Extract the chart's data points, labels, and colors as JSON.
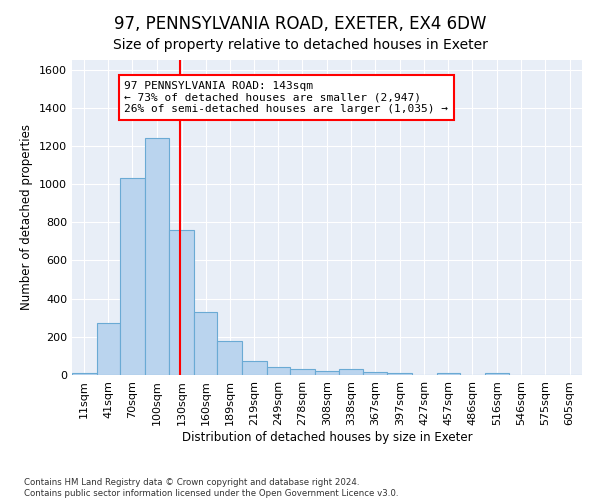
{
  "title": "97, PENNSYLVANIA ROAD, EXETER, EX4 6DW",
  "subtitle": "Size of property relative to detached houses in Exeter",
  "xlabel": "Distribution of detached houses by size in Exeter",
  "ylabel": "Number of detached properties",
  "footnote": "Contains HM Land Registry data © Crown copyright and database right 2024.\nContains public sector information licensed under the Open Government Licence v3.0.",
  "bar_labels": [
    "11sqm",
    "41sqm",
    "70sqm",
    "100sqm",
    "130sqm",
    "160sqm",
    "189sqm",
    "219sqm",
    "249sqm",
    "278sqm",
    "308sqm",
    "338sqm",
    "367sqm",
    "397sqm",
    "427sqm",
    "457sqm",
    "486sqm",
    "516sqm",
    "546sqm",
    "575sqm",
    "605sqm"
  ],
  "bar_values": [
    10,
    275,
    1030,
    1240,
    760,
    330,
    180,
    75,
    40,
    30,
    20,
    30,
    15,
    10,
    0,
    10,
    0,
    10,
    0,
    0,
    0
  ],
  "bin_edges": [
    11,
    41,
    70,
    100,
    130,
    160,
    189,
    219,
    249,
    278,
    308,
    338,
    367,
    397,
    427,
    457,
    486,
    516,
    546,
    575,
    605,
    635
  ],
  "bar_color": "#bad4ee",
  "bar_edge_color": "#6aaad4",
  "vline_x": 143,
  "vline_color": "red",
  "annotation_text": "97 PENNSYLVANIA ROAD: 143sqm\n← 73% of detached houses are smaller (2,947)\n26% of semi-detached houses are larger (1,035) →",
  "annotation_box_color": "white",
  "annotation_box_edge_color": "red",
  "ylim": [
    0,
    1650
  ],
  "yticks": [
    0,
    200,
    400,
    600,
    800,
    1000,
    1200,
    1400,
    1600
  ],
  "plot_bg_color": "#e8eef7",
  "grid_color": "white",
  "title_fontsize": 12,
  "subtitle_fontsize": 10
}
